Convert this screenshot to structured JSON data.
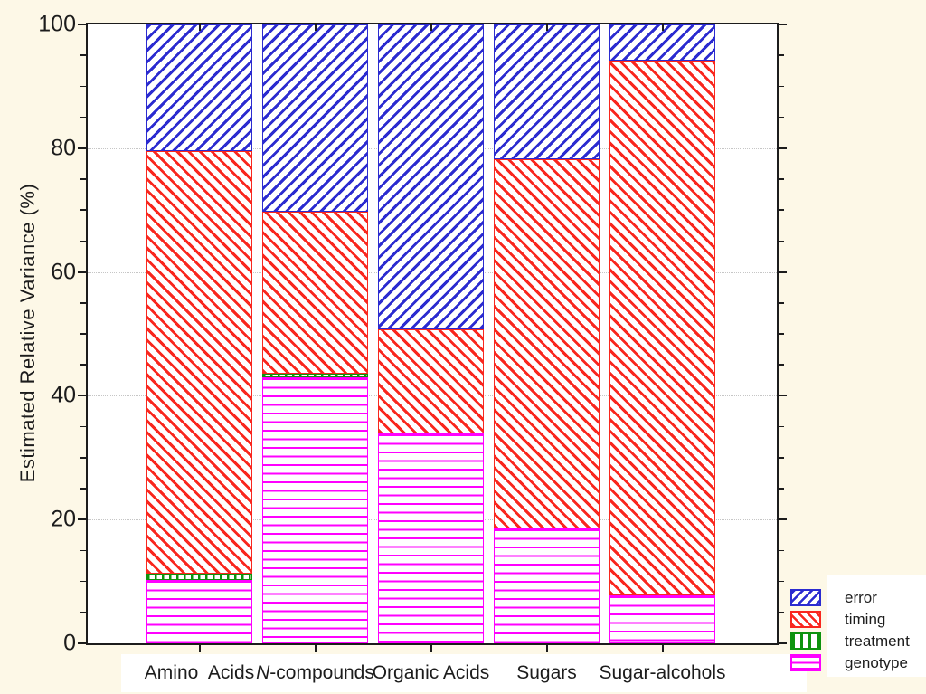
{
  "colors": {
    "background": "#fdf8e7",
    "plot_background": "#ffffff",
    "axis": "#1c1c1c",
    "grid": "#c6c6c6",
    "error": "#2b2bd0",
    "timing": "#f9271e",
    "treatment": "#0d930d",
    "genotype": "#ff00ff"
  },
  "chart_data": {
    "type": "bar",
    "stacked": true,
    "title": "",
    "xlabel": "",
    "ylabel": "Estimated Relative Variance (%)",
    "ylim": [
      0,
      100
    ],
    "y_ticks": [
      0,
      20,
      40,
      60,
      80,
      100
    ],
    "y_minor_tick_step": 5,
    "grid": "dotted-horizontal-at-major-ticks",
    "categories": [
      "Amino Acids",
      "N-compounds",
      "Organic Acids",
      "Sugars",
      "Sugar-alcohols"
    ],
    "series": [
      {
        "name": "genotype",
        "hatch": "horizontal",
        "values": [
          10.3,
          43.0,
          33.9,
          18.5,
          7.8
        ]
      },
      {
        "name": "treatment",
        "hatch": "vertical",
        "values": [
          1.0,
          0.5,
          0.0,
          0.0,
          0.0
        ]
      },
      {
        "name": "timing",
        "hatch": "diagonal-down",
        "values": [
          68.2,
          26.2,
          16.8,
          59.7,
          86.4
        ]
      },
      {
        "name": "error",
        "hatch": "diagonal-up",
        "values": [
          20.5,
          30.3,
          49.3,
          21.8,
          5.8
        ]
      }
    ],
    "legend_position": "bottom-right-outside"
  },
  "x_axis": {
    "labels": [
      {
        "text": "Amino  Acids",
        "italic_first": false
      },
      {
        "text": "N-compounds",
        "italic_first": true
      },
      {
        "text": "Organic Acids",
        "italic_first": false
      },
      {
        "text": "Sugars",
        "italic_first": false
      },
      {
        "text": "Sugar-alcohols",
        "italic_first": false
      }
    ]
  },
  "legend": {
    "items": [
      {
        "label": "error",
        "series": "error"
      },
      {
        "label": "timing",
        "series": "timing"
      },
      {
        "label": "treatment",
        "series": "treatment"
      },
      {
        "label": "genotype",
        "series": "genotype"
      }
    ]
  }
}
